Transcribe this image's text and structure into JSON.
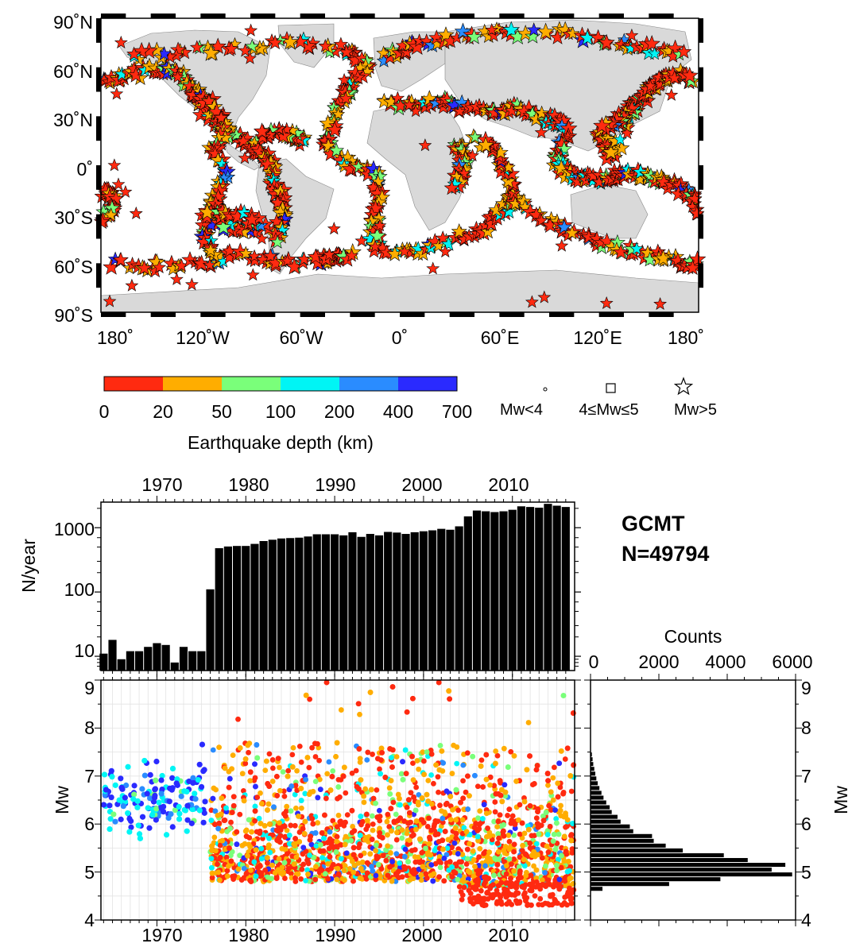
{
  "map": {
    "lat_ticks": [
      "90˚N",
      "60˚N",
      "30˚N",
      "0˚",
      "30˚S",
      "60˚S",
      "90˚S"
    ],
    "lon_ticks": [
      "180˚",
      "120˚W",
      "60˚W",
      "0˚",
      "60˚E",
      "120˚E",
      "180˚"
    ],
    "ocean_color": "#ffffff",
    "land_color": "#d9d9d9"
  },
  "colorbar": {
    "ticks": [
      "0",
      "20",
      "50",
      "100",
      "200",
      "400",
      "700"
    ],
    "colors": [
      "#ff2a10",
      "#ffad00",
      "#7aff7a",
      "#00f5f5",
      "#2a8cff",
      "#2a2aff"
    ],
    "label": "Earthquake depth (km)"
  },
  "size_legend": {
    "items": [
      {
        "symbol": "circle",
        "label": "Mw<4"
      },
      {
        "symbol": "square",
        "label": "4≤Mw≤5"
      },
      {
        "symbol": "star",
        "label": "Mw>5"
      }
    ]
  },
  "catalog": {
    "name": "GCMT",
    "count": "N=49794"
  },
  "chart_data": [
    {
      "type": "bar",
      "ylabel": "N/year",
      "yscale": "log",
      "ylim": [
        6,
        2500
      ],
      "xlim": [
        1963.7,
        2017
      ],
      "x_tick_labels": [
        "1970",
        "1980",
        "1990",
        "2000",
        "2010"
      ],
      "y_tick_labels": [
        "10",
        "100",
        "1000"
      ],
      "grid": false,
      "x": [
        1964,
        1965,
        1966,
        1967,
        1968,
        1969,
        1970,
        1971,
        1972,
        1973,
        1974,
        1975,
        1976,
        1977,
        1978,
        1979,
        1980,
        1981,
        1982,
        1983,
        1984,
        1985,
        1986,
        1987,
        1988,
        1989,
        1990,
        1991,
        1992,
        1993,
        1994,
        1995,
        1996,
        1997,
        1998,
        1999,
        2000,
        2001,
        2002,
        2003,
        2004,
        2005,
        2006,
        2007,
        2008,
        2009,
        2010,
        2011,
        2012,
        2013,
        2014,
        2015,
        2016
      ],
      "values": [
        11,
        18,
        9,
        12,
        12,
        14,
        16,
        15,
        8,
        14,
        12,
        12,
        110,
        480,
        510,
        520,
        520,
        560,
        620,
        650,
        680,
        690,
        700,
        730,
        790,
        790,
        790,
        760,
        850,
        720,
        800,
        760,
        860,
        840,
        800,
        850,
        880,
        910,
        960,
        930,
        1050,
        1500,
        1850,
        1800,
        1750,
        1800,
        1900,
        2150,
        2100,
        2050,
        2350,
        2200,
        2100
      ]
    },
    {
      "type": "scatter",
      "ylabel": "Mw",
      "ylim": [
        4,
        9
      ],
      "xlim": [
        1963.7,
        2017
      ],
      "x_tick_labels": [
        "1970",
        "1980",
        "1990",
        "2000",
        "2010"
      ],
      "y_tick_labels": [
        "4",
        "5",
        "6",
        "7",
        "8",
        "9"
      ],
      "grid": true,
      "color_by": "Earthquake depth (km)"
    },
    {
      "type": "bar",
      "orientation": "horizontal",
      "xlabel": "Counts",
      "ylabel": "Mw",
      "xlim": [
        0,
        6000
      ],
      "ylim": [
        4,
        9
      ],
      "x_tick_labels": [
        "0",
        "2000",
        "4000",
        "6000"
      ],
      "y_tick_labels": [
        "4",
        "5",
        "6",
        "7",
        "8",
        "9"
      ],
      "bins": [
        4.6,
        4.7,
        4.8,
        4.9,
        5.0,
        5.1,
        5.2,
        5.3,
        5.4,
        5.5,
        5.6,
        5.7,
        5.8,
        5.9,
        6.0,
        6.1,
        6.2,
        6.3,
        6.4,
        6.5,
        6.6,
        6.7,
        6.8,
        6.9,
        7.0,
        7.1,
        7.2,
        7.3,
        7.4
      ],
      "values": [
        350,
        2300,
        3800,
        5900,
        5300,
        5700,
        4600,
        3900,
        2700,
        2200,
        1850,
        1800,
        1250,
        1150,
        880,
        790,
        620,
        560,
        460,
        380,
        320,
        260,
        210,
        170,
        140,
        110,
        80,
        60,
        40
      ]
    }
  ]
}
